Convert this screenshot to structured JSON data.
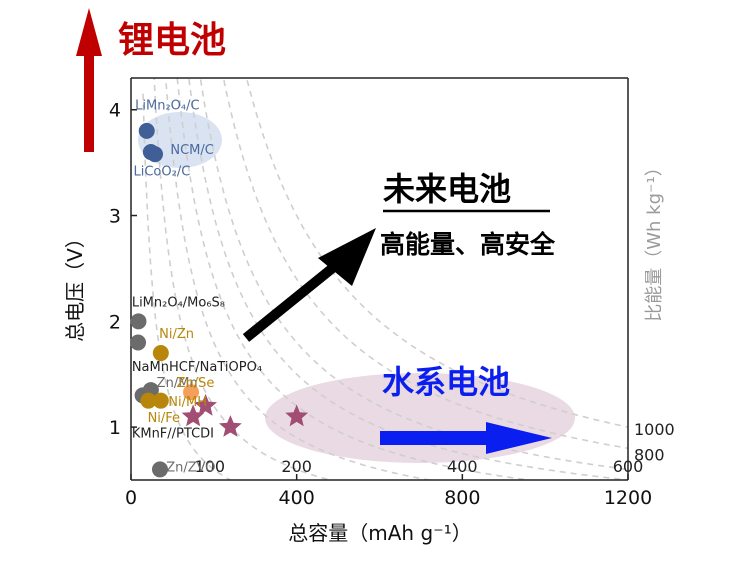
{
  "chart_data": {
    "type": "scatter",
    "xlabel": "总容量（mAh g⁻¹）",
    "ylabel": "总电压（V）",
    "y2label": "比能量（Wh kg⁻¹）",
    "xlim": [
      0,
      1200
    ],
    "ylim": [
      0.5,
      4.3
    ],
    "xticks": [
      0,
      400,
      800,
      1200
    ],
    "yticks": [
      1,
      2,
      3,
      4
    ],
    "grid": false,
    "colors": {
      "li": "#3f5f96",
      "li_text": "#4a6aa0",
      "li_zone": "#cfdcef",
      "grey": "#6b6b6b",
      "gold": "#b8860b",
      "orange": "#f5a05a",
      "star": "#a24d73",
      "aqua_zone": "#e6d3de",
      "red_arrow": "#c00000",
      "blue_arrow": "#0a1ef0",
      "iso": "#cfcfcf"
    },
    "iso_energy_lines": [
      {
        "value": 100,
        "label": "100"
      },
      {
        "value": 200,
        "label": "200"
      },
      {
        "value": 300,
        "label": ""
      },
      {
        "value": 400,
        "label": "400"
      },
      {
        "value": 500,
        "label": ""
      },
      {
        "value": 600,
        "label": "600"
      },
      {
        "value": 800,
        "label": "800"
      },
      {
        "value": 1000,
        "label": "1000"
      }
    ],
    "groups": [
      {
        "name": "lithium",
        "color": "li",
        "points": [
          {
            "x": 38,
            "y": 3.8
          },
          {
            "x": 48,
            "y": 3.6
          },
          {
            "x": 58,
            "y": 3.58
          }
        ]
      },
      {
        "name": "grey",
        "color": "grey",
        "points": [
          {
            "x": 18,
            "y": 2.0
          },
          {
            "x": 17,
            "y": 1.8
          },
          {
            "x": 28,
            "y": 1.3
          },
          {
            "x": 48,
            "y": 1.35
          },
          {
            "x": 70,
            "y": 0.6
          }
        ]
      },
      {
        "name": "gold",
        "color": "gold",
        "points": [
          {
            "x": 72,
            "y": 1.7
          },
          {
            "x": 42,
            "y": 1.25
          },
          {
            "x": 72,
            "y": 1.25
          }
        ]
      },
      {
        "name": "orange",
        "color": "orange",
        "points": [
          {
            "x": 145,
            "y": 1.33
          }
        ]
      },
      {
        "name": "aqueous-future",
        "color": "star",
        "marker": "star",
        "points": [
          {
            "x": 150,
            "y": 1.1
          },
          {
            "x": 180,
            "y": 1.2
          },
          {
            "x": 240,
            "y": 1.0
          },
          {
            "x": 400,
            "y": 1.1
          }
        ]
      }
    ],
    "point_labels": [
      {
        "text": "LiMn₂O₄/C",
        "x": 10,
        "y": 4.0,
        "color": "li_text"
      },
      {
        "text": "NCM/C",
        "x": 95,
        "y": 3.58,
        "color": "li_text"
      },
      {
        "text": "LiCoO₂/C",
        "x": 6,
        "y": 3.38,
        "color": "li_text"
      },
      {
        "text": "LiMn₂O₄/Mo₆S₈",
        "x": 2,
        "y": 2.14,
        "color": "dark"
      },
      {
        "text": "Ni/Zn",
        "x": 68,
        "y": 1.84,
        "color": "gold"
      },
      {
        "text": "NaMnHCF/NaTiOPO₄",
        "x": 2,
        "y": 1.53,
        "color": "dark"
      },
      {
        "text": "Zn/Mn",
        "x": 62,
        "y": 1.38,
        "color": "grey"
      },
      {
        "text": "Zn/Se",
        "x": 110,
        "y": 1.38,
        "color": "gold"
      },
      {
        "text": "Ni/MH",
        "x": 90,
        "y": 1.2,
        "color": "gold"
      },
      {
        "text": "Ni/Fe",
        "x": 40,
        "y": 1.05,
        "color": "gold"
      },
      {
        "text": "KMnF//PTCDI",
        "x": 2,
        "y": 0.9,
        "color": "dark"
      },
      {
        "text": "Zn/ZVO",
        "x": 85,
        "y": 0.58,
        "color": "grey"
      }
    ]
  },
  "annotations": {
    "lithium_title": "锂电池",
    "future_title": "未来电池",
    "future_subtitle": "高能量、高安全",
    "aqueous_title": "水系电池"
  }
}
